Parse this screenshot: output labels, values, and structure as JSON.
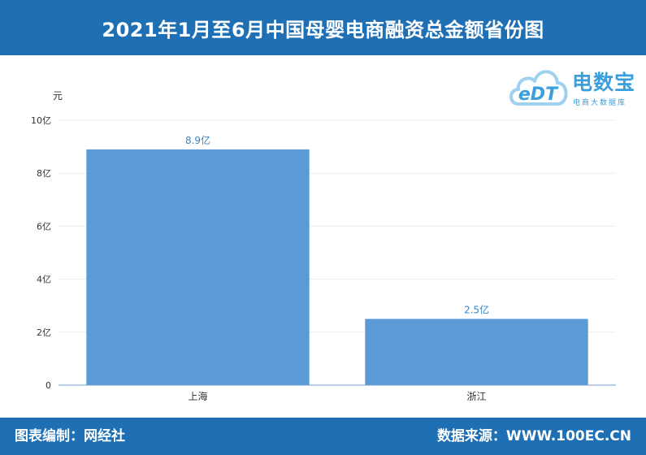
{
  "header": {
    "title": "2021年1月至6月中国母婴电商融资总金额省份图"
  },
  "footer": {
    "left": "图表编制：网经社",
    "right": "数据来源：WWW.100EC.CN"
  },
  "logo": {
    "mark": "eDT",
    "name": "电数宝",
    "sub": "电商大数据库"
  },
  "colors": {
    "header": "#1f6fb5",
    "bar": "#5b9bd5",
    "label": "#3a86c8",
    "axis": "#6f9fcf"
  },
  "chart_data": {
    "type": "bar",
    "categories": [
      "上海",
      "浙江"
    ],
    "values": [
      8.9,
      2.5
    ],
    "data_labels": [
      "8.9亿",
      "2.5亿"
    ],
    "unit_label": "元",
    "ylim": [
      0,
      10
    ],
    "y_ticks": [
      {
        "value": 0,
        "label": "0"
      },
      {
        "value": 2,
        "label": "2亿"
      },
      {
        "value": 4,
        "label": "4亿"
      },
      {
        "value": 6,
        "label": "6亿"
      },
      {
        "value": 8,
        "label": "8亿"
      },
      {
        "value": 10,
        "label": "10亿"
      }
    ],
    "grid": true,
    "legend": "none"
  }
}
